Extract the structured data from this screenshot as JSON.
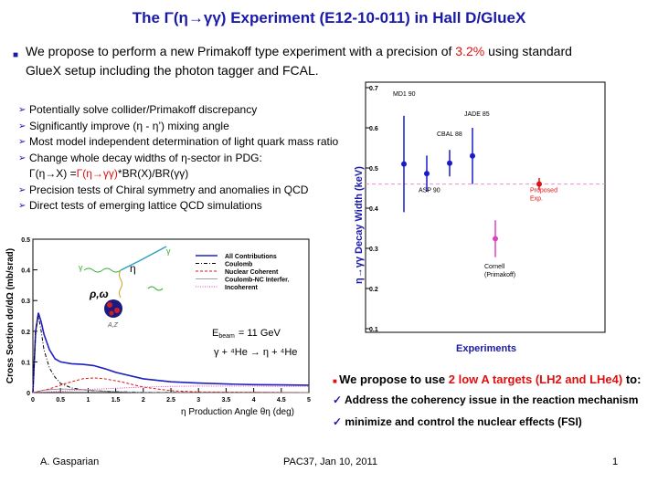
{
  "title": "The Γ(η→γγ) Experiment (E12-10-011) in Hall D/GlueX",
  "intro": {
    "part1": "We propose to perform a new Primakoff type experiment with a precision of ",
    "highlight": "3.2%",
    "part2": " using standard",
    "line2": "GlueX setup including the photon tagger and FCAL."
  },
  "bullets": [
    "Potentially solve collider/Primakoff discrepancy",
    "Significantly improve (η - η’) mixing angle",
    "Most model independent determination of light quark mass ratio",
    "Change whole decay widths of η-sector in PDG:",
    "Γ(η→X) =",
    "Precision tests of Chiral symmetry and anomalies in QCD",
    "Direct tests of emerging lattice QCD simulations"
  ],
  "bullet_pdg": {
    "red_part": "Γ(η→γγ)",
    "tail": "*BR(X)/BR(γγ)"
  },
  "right_text": {
    "line1_pre": "We propose to use ",
    "line1_red": "2 low A targets (LH2 and LHe4)",
    "line1_post": "  to:",
    "check1": "Address the coherency issue in the reaction mechanism",
    "check2": "minimize and control the nuclear  effects (FSI)"
  },
  "footer": {
    "author": "A. Gasparian",
    "event": "PAC37, Jan 10, 2011",
    "page": "1"
  },
  "colors": {
    "title_blue": "#1a1aa8",
    "red": "#e01010",
    "point_blue": "#1a1acc",
    "magenta": "#e040c0"
  },
  "chart_data": [
    {
      "type": "line",
      "title": "",
      "xlabel": "η Production Angle θη (deg)",
      "ylabel": "Cross Section dσ/dΩ (mb/srad)",
      "xlim": [
        0,
        5
      ],
      "ylim": [
        0,
        0.5
      ],
      "xticks": [
        "0",
        "0.5",
        "1",
        "1.5",
        "2",
        "2.5",
        "3",
        "3.5",
        "4",
        "4.5",
        "5"
      ],
      "yticks": [
        "0",
        "0.1",
        "0.2",
        "0.3",
        "0.4",
        "0.5"
      ],
      "legend": [
        "All Contributions",
        "Coulomb",
        "Nuclear Coherent",
        "Coulomb-NC Interfer.",
        "Incoherent"
      ],
      "annotations": {
        "ebeam_label": "E",
        "ebeam_sub": "beam",
        "ebeam_value": "= 11 GeV",
        "reaction": "γ + ⁴He  →  η + ⁴He",
        "diagram_eta": "η",
        "diagram_rho": "ρ,ω",
        "diagram_gamma": "γ",
        "diagram_az": "A,Z"
      },
      "series": [
        {
          "name": "All Contributions",
          "x": [
            0,
            0.05,
            0.1,
            0.15,
            0.2,
            0.3,
            0.4,
            0.5,
            0.7,
            0.9,
            1.1,
            1.3,
            1.5,
            2,
            2.5,
            3,
            3.5,
            4,
            4.5,
            5
          ],
          "y": [
            0,
            0.2,
            0.26,
            0.23,
            0.19,
            0.14,
            0.11,
            0.1,
            0.094,
            0.092,
            0.088,
            0.078,
            0.066,
            0.045,
            0.035,
            0.031,
            0.028,
            0.026,
            0.025,
            0.024
          ]
        },
        {
          "name": "Coulomb",
          "x": [
            0,
            0.05,
            0.1,
            0.15,
            0.2,
            0.3,
            0.4,
            0.5,
            0.7,
            1.0,
            1.5,
            2,
            5
          ],
          "y": [
            0,
            0.2,
            0.25,
            0.2,
            0.14,
            0.08,
            0.05,
            0.03,
            0.015,
            0.007,
            0.003,
            0.001,
            0
          ]
        },
        {
          "name": "Nuclear Coherent",
          "x": [
            0,
            0.3,
            0.6,
            0.9,
            1.1,
            1.3,
            1.6,
            2.0,
            2.5,
            3,
            5
          ],
          "y": [
            0,
            0.012,
            0.03,
            0.045,
            0.048,
            0.045,
            0.035,
            0.018,
            0.006,
            0.002,
            0
          ]
        },
        {
          "name": "Coulomb-NC Interfer.",
          "x": [
            0,
            0.2,
            0.5,
            0.8,
            1.0,
            1.3,
            1.8,
            2.5,
            5
          ],
          "y": [
            0,
            0.008,
            0.012,
            0.01,
            0.008,
            0.004,
            0.001,
            0,
            0
          ]
        },
        {
          "name": "Incoherent",
          "x": [
            0,
            0.5,
            1,
            1.5,
            2,
            2.5,
            3,
            3.5,
            4,
            4.5,
            5
          ],
          "y": [
            0,
            0.004,
            0.01,
            0.014,
            0.018,
            0.02,
            0.021,
            0.021,
            0.021,
            0.02,
            0.02
          ]
        }
      ]
    },
    {
      "type": "scatter",
      "title": "",
      "xlabel": "Experiments",
      "ylabel": "η→γγ  Decay Width (keV)",
      "ylim": [
        0.1,
        0.7
      ],
      "yticks": [
        "0.1",
        "0.2",
        "0.3",
        "0.4",
        "0.5",
        "0.6",
        "0.7"
      ],
      "points": [
        {
          "label": "MD1 90",
          "value": 0.51,
          "err": 0.12,
          "color": "#1a1acc"
        },
        {
          "label": "ASP 90",
          "value": 0.486,
          "err": 0.045,
          "color": "#1a1acc"
        },
        {
          "label": "CBAL 88",
          "value": 0.512,
          "err": 0.033,
          "color": "#1a1acc"
        },
        {
          "label": "JADE 85",
          "value": 0.53,
          "err": 0.07,
          "color": "#1a1acc"
        },
        {
          "label": "Cornell\n(Primakoff)",
          "value": 0.324,
          "err": 0.046,
          "color": "#e040c0"
        },
        {
          "label": "Proposed\nExp.",
          "value": 0.46,
          "err": 0.015,
          "color": "#e01010"
        }
      ],
      "reference_line": 0.46
    }
  ]
}
